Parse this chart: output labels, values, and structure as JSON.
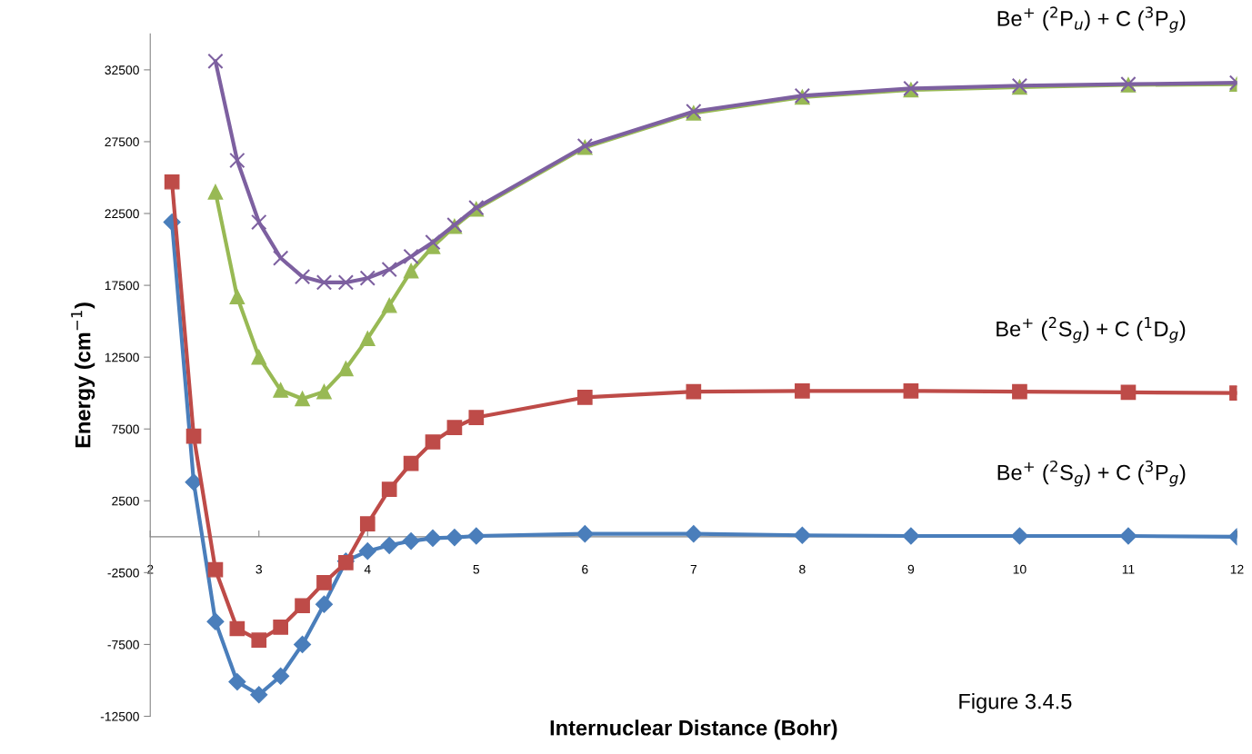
{
  "chart_data": {
    "type": "line",
    "xlabel": "Internuclear Distance (Bohr)",
    "ylabel": "Energy (cm$^{−1}$)",
    "xlim": [
      2,
      12
    ],
    "xticks": [
      2,
      3,
      4,
      5,
      6,
      7,
      8,
      9,
      10,
      11,
      12
    ],
    "ylim": [
      -12500,
      35000
    ],
    "yticks": [
      -12500,
      -7500,
      -2500,
      2500,
      7500,
      12500,
      17500,
      22500,
      27500,
      32500
    ],
    "grid": false,
    "legend": false,
    "line_style": "solid",
    "annotations": [
      "Figure 3.4.5"
    ],
    "series": [
      {
        "name": "Be$^{+}$ ($^{2}$S$_{g}$) + C ($^{3}$P$_{g}$)",
        "color": "#4a7ebb",
        "marker": "diamond",
        "x": [
          2.2,
          2.4,
          2.6,
          2.8,
          3.0,
          3.2,
          3.4,
          3.6,
          3.8,
          4.0,
          4.2,
          4.4,
          4.6,
          4.8,
          5,
          6,
          7,
          8,
          9,
          10,
          11,
          12
        ],
        "values": [
          21900,
          3800,
          -5900,
          -10100,
          -11000,
          -9700,
          -7500,
          -4700,
          -1700,
          -1000,
          -600,
          -300,
          -100,
          -50,
          50,
          200,
          200,
          100,
          50,
          50,
          50,
          0
        ]
      },
      {
        "name": "Be$^{+}$ ($^{2}$S$_{g}$) + C ($^{1}$D$_{g}$)",
        "color": "#be4b48",
        "marker": "square",
        "x": [
          2.2,
          2.4,
          2.6,
          2.8,
          3.0,
          3.2,
          3.4,
          3.6,
          3.8,
          4.0,
          4.2,
          4.4,
          4.6,
          4.8,
          5,
          6,
          7,
          8,
          9,
          10,
          11,
          12
        ],
        "values": [
          24700,
          7000,
          -2300,
          -6400,
          -7200,
          -6300,
          -4800,
          -3200,
          -1800,
          900,
          3300,
          5100,
          6600,
          7600,
          8300,
          9700,
          10100,
          10150,
          10150,
          10100,
          10050,
          10000
        ]
      },
      {
        "color": "#98b954",
        "marker": "triangle",
        "x": [
          2.6,
          2.8,
          3.0,
          3.2,
          3.4,
          3.6,
          3.8,
          4.0,
          4.2,
          4.4,
          4.6,
          4.8,
          5,
          6,
          7,
          8,
          9,
          10,
          11,
          12
        ],
        "values": [
          24000,
          16700,
          12500,
          10200,
          9600,
          10100,
          11700,
          13800,
          16100,
          18500,
          20200,
          21600,
          22800,
          27100,
          29500,
          30600,
          31100,
          31300,
          31450,
          31500
        ]
      },
      {
        "name": "Be$^{+}$ ($^{2}$P$_{u}$) + C ($^{3}$P$_{g}$)",
        "color": "#7d60a0",
        "marker": "cross",
        "x": [
          2.6,
          2.8,
          3.0,
          3.2,
          3.4,
          3.6,
          3.8,
          4.0,
          4.2,
          4.4,
          4.6,
          4.8,
          5,
          6,
          7,
          8,
          9,
          10,
          11,
          12
        ],
        "values": [
          33100,
          26200,
          21900,
          19400,
          18100,
          17700,
          17700,
          18000,
          18600,
          19500,
          20500,
          21700,
          22900,
          27200,
          29600,
          30700,
          31200,
          31400,
          31500,
          31600
        ]
      }
    ]
  }
}
